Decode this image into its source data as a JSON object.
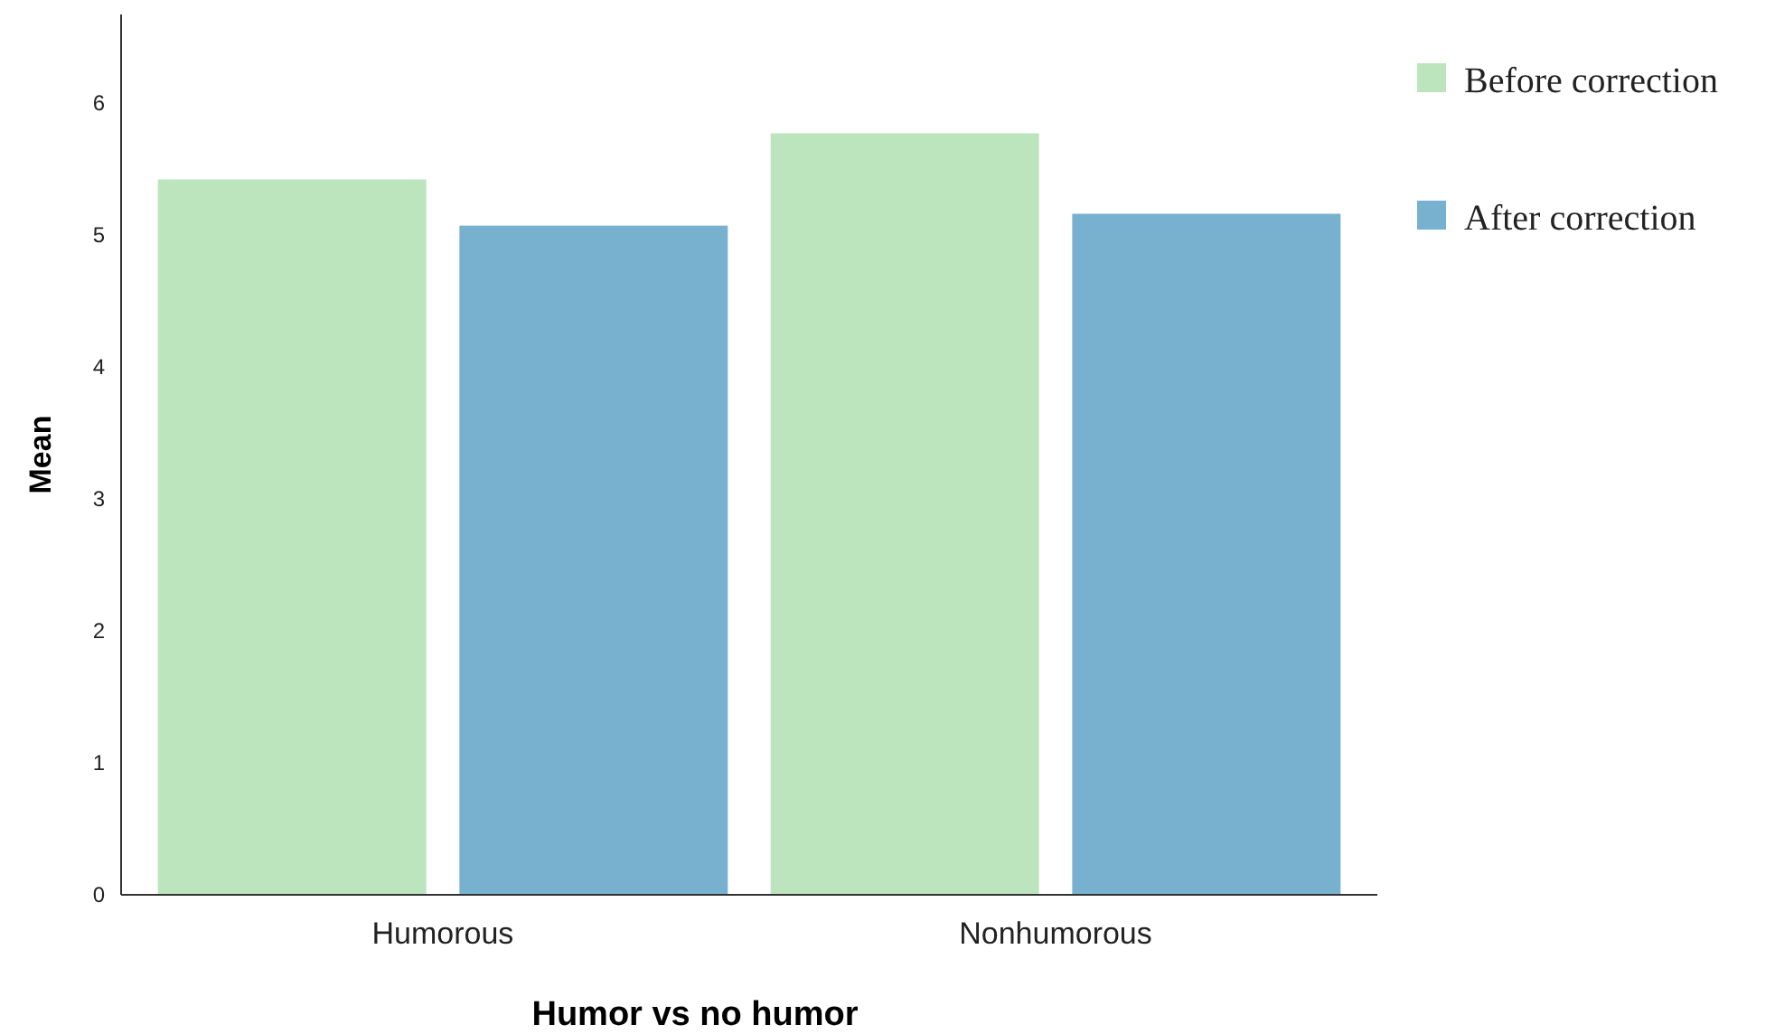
{
  "chart_data": {
    "type": "bar",
    "xlabel": "Humor vs no humor",
    "ylabel": "Mean",
    "categories": [
      "Humorous",
      "Nonhumorous"
    ],
    "series": [
      {
        "name": "Before correction",
        "color": "#bde5bd",
        "values": [
          5.42,
          5.77
        ]
      },
      {
        "name": "After correction",
        "color": "#78b1d0",
        "values": [
          5.07,
          5.16
        ]
      }
    ],
    "ylim": [
      0,
      6.67
    ],
    "yticks": [
      0,
      1,
      2,
      3,
      4,
      5,
      6
    ],
    "grid": false,
    "legend": "top right"
  }
}
